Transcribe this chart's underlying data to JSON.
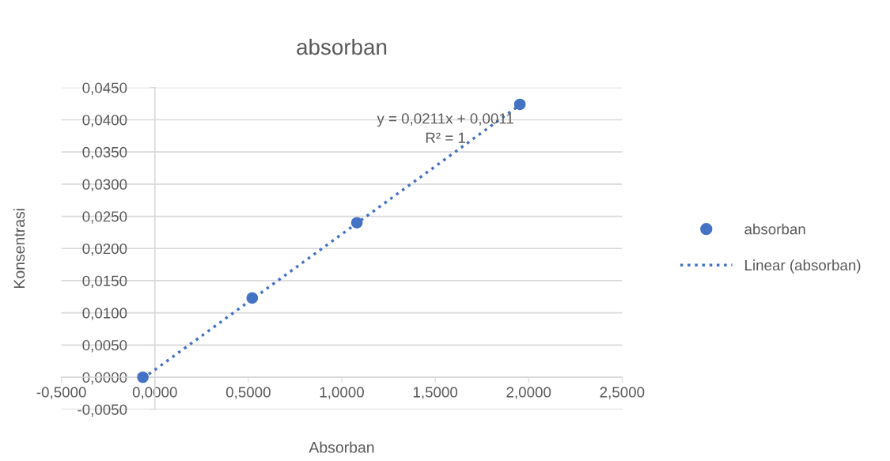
{
  "chart_data": {
    "type": "scatter",
    "title": "absorban",
    "xlabel": "Absorban",
    "ylabel": "Konsentrasi",
    "series": [
      {
        "name": "absorban",
        "color": "#4472c4",
        "marker": "circle",
        "x": [
          -0.064,
          0.521,
          1.081,
          1.953
        ],
        "values": [
          0.0,
          0.0123,
          0.024,
          0.0424
        ]
      },
      {
        "name": "Linear (absorban)",
        "type": "line",
        "color": "#4472c4",
        "line_style": "dotted",
        "x": [
          -0.064,
          1.953
        ],
        "values": [
          -0.0002,
          0.0423
        ]
      }
    ],
    "annotations": [
      "y = 0,0211x + 0,0011",
      "R² = 1"
    ],
    "xlim": [
      -0.5,
      2.5
    ],
    "xticks": [
      {
        "value": -0.5,
        "label": "-0,5000"
      },
      {
        "value": 0,
        "label": "0,0000"
      },
      {
        "value": 0.5,
        "label": "0,5000"
      },
      {
        "value": 1.0,
        "label": "1,0000"
      },
      {
        "value": 1.5,
        "label": "1,5000"
      },
      {
        "value": 2.0,
        "label": "2,0000"
      },
      {
        "value": 2.5,
        "label": "2,5000"
      }
    ],
    "ylim": [
      -0.005,
      0.045
    ],
    "yticks": [
      {
        "value": -0.005,
        "label": "-0,0050"
      },
      {
        "value": 0,
        "label": "0,0000"
      },
      {
        "value": 0.005,
        "label": "0,0050"
      },
      {
        "value": 0.01,
        "label": "0,0100"
      },
      {
        "value": 0.015,
        "label": "0,0150"
      },
      {
        "value": 0.02,
        "label": "0,0200"
      },
      {
        "value": 0.025,
        "label": "0,0250"
      },
      {
        "value": 0.03,
        "label": "0,0300"
      },
      {
        "value": 0.035,
        "label": "0,0350"
      },
      {
        "value": 0.04,
        "label": "0,0400"
      },
      {
        "value": 0.045,
        "label": "0,0450"
      }
    ],
    "grid": "y",
    "legend": "right"
  }
}
